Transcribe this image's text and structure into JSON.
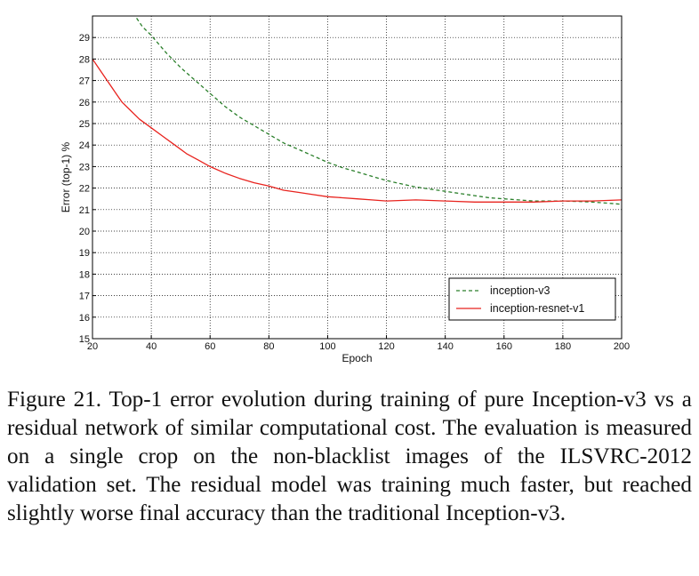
{
  "chart_data": {
    "type": "line",
    "title": "",
    "xlabel": "Epoch",
    "ylabel": "Error (top-1) %",
    "xlim": [
      20,
      200
    ],
    "ylim": [
      15,
      30
    ],
    "xticks": [
      20,
      40,
      60,
      80,
      100,
      120,
      140,
      160,
      180,
      200
    ],
    "yticks": [
      15,
      16,
      17,
      18,
      19,
      20,
      21,
      22,
      23,
      24,
      25,
      26,
      27,
      28,
      29
    ],
    "grid": true,
    "legend_position": "bottom-right",
    "series": [
      {
        "name": "inception-v3",
        "style": "dashed",
        "color": "#2a7f2a",
        "x": [
          35,
          37,
          40,
          45,
          50,
          55,
          60,
          65,
          70,
          75,
          80,
          85,
          90,
          95,
          100,
          105,
          110,
          115,
          120,
          125,
          130,
          135,
          140,
          145,
          150,
          155,
          160,
          165,
          170,
          175,
          180,
          185,
          190,
          195,
          200
        ],
        "y": [
          29.9,
          29.5,
          29.1,
          28.3,
          27.6,
          27.0,
          26.4,
          25.8,
          25.3,
          24.9,
          24.5,
          24.1,
          23.8,
          23.5,
          23.2,
          22.95,
          22.75,
          22.55,
          22.35,
          22.2,
          22.05,
          21.95,
          21.85,
          21.75,
          21.65,
          21.55,
          21.5,
          21.45,
          21.4,
          21.4,
          21.4,
          21.38,
          21.35,
          21.3,
          21.25
        ]
      },
      {
        "name": "inception-resnet-v1",
        "style": "solid",
        "color": "#e8231e",
        "x": [
          20,
          22,
          25,
          28,
          30,
          33,
          36,
          40,
          44,
          48,
          52,
          56,
          60,
          65,
          70,
          75,
          80,
          85,
          90,
          95,
          100,
          105,
          110,
          115,
          120,
          130,
          140,
          150,
          160,
          170,
          180,
          190,
          200
        ],
        "y": [
          28.0,
          27.6,
          27.0,
          26.4,
          26.0,
          25.6,
          25.2,
          24.8,
          24.4,
          24.0,
          23.6,
          23.3,
          23.0,
          22.7,
          22.45,
          22.25,
          22.1,
          21.9,
          21.8,
          21.7,
          21.6,
          21.55,
          21.5,
          21.45,
          21.4,
          21.45,
          21.4,
          21.35,
          21.35,
          21.35,
          21.4,
          21.4,
          21.45
        ]
      }
    ]
  },
  "caption": "Figure 21. Top-1 error evolution during training of pure Inception-v3 vs a residual network of similar computational cost. The evaluation is measured on a single crop on the non-blacklist images of the ILSVRC-2012 validation set. The residual model was training much faster, but reached slightly worse final accuracy than the traditional Inception-v3."
}
